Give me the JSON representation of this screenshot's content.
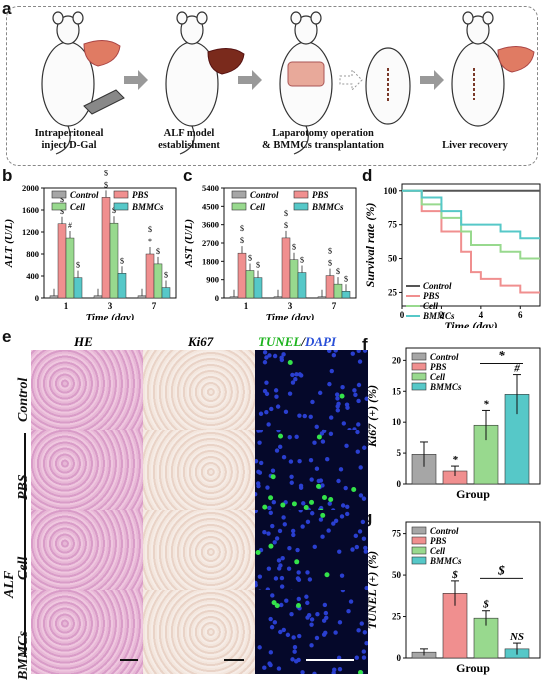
{
  "panel_a": {
    "label": "a",
    "steps": [
      {
        "caption": "Intraperitoneal\ninject D-Gal"
      },
      {
        "caption": "ALF model\nestablishment"
      },
      {
        "caption": "Laparotomy operation\n& BMMCs transplantation"
      },
      {
        "caption": "Liver recovery"
      }
    ]
  },
  "legend": [
    "Control",
    "PBS",
    "Cell",
    "BMMCs"
  ],
  "colors": {
    "Control": "#a6a6a6",
    "PBS": "#f08f8f",
    "Cell": "#98d98e",
    "BMMCs": "#56c8c8"
  },
  "chart_data": [
    {
      "panel": "b",
      "type": "bar",
      "ylabel": "ALT (U/L)",
      "xlabel": "Time (day)",
      "categories": [
        "1",
        "3",
        "7"
      ],
      "yticks": [
        "0",
        "400",
        "800",
        "1200",
        "1600",
        "2000"
      ],
      "ylim": [
        0,
        2000
      ],
      "series": [
        {
          "name": "Control",
          "values": [
            40,
            40,
            40
          ]
        },
        {
          "name": "PBS",
          "values": [
            1350,
            1830,
            800
          ]
        },
        {
          "name": "Cell",
          "values": [
            1090,
            1360,
            620
          ]
        },
        {
          "name": "BMMCs",
          "values": [
            370,
            450,
            190
          ]
        }
      ],
      "sig_marks": [
        "$",
        "#",
        "$",
        "$",
        "$",
        "$",
        "$",
        "$",
        "*",
        "$",
        "$",
        "$"
      ]
    },
    {
      "panel": "c",
      "type": "bar",
      "ylabel": "AST (U/L)",
      "xlabel": "Time (day)",
      "categories": [
        "1",
        "3",
        "7"
      ],
      "yticks": [
        "0",
        "900",
        "1800",
        "2700",
        "3600",
        "4500",
        "5400"
      ],
      "ylim": [
        0,
        5400
      ],
      "series": [
        {
          "name": "Control",
          "values": [
            60,
            60,
            60
          ]
        },
        {
          "name": "PBS",
          "values": [
            2200,
            2950,
            1100
          ]
        },
        {
          "name": "Cell",
          "values": [
            1350,
            1880,
            680
          ]
        },
        {
          "name": "BMMCs",
          "values": [
            1000,
            1250,
            330
          ]
        }
      ],
      "sig_marks": [
        "$",
        "$",
        "$",
        "$",
        "$",
        "$",
        "$",
        "$",
        "$",
        "$",
        "$",
        "$"
      ]
    },
    {
      "panel": "d",
      "type": "line",
      "ylabel": "Survival rate (%)",
      "xlabel": "Time (day)",
      "xticks": [
        "0",
        "2",
        "4",
        "6"
      ],
      "yticks": [
        "25",
        "50",
        "75",
        "100"
      ],
      "xlim": [
        0,
        7
      ],
      "ylim": [
        15,
        105
      ],
      "series": [
        {
          "name": "Control",
          "points": [
            [
              0,
              100
            ],
            [
              7,
              100
            ]
          ]
        },
        {
          "name": "PBS",
          "points": [
            [
              0,
              100
            ],
            [
              1,
              100
            ],
            [
              1,
              85
            ],
            [
              2,
              85
            ],
            [
              2,
              70
            ],
            [
              3,
              70
            ],
            [
              3,
              55
            ],
            [
              3.5,
              55
            ],
            [
              3.5,
              40
            ],
            [
              4,
              40
            ],
            [
              4,
              35
            ],
            [
              5,
              35
            ],
            [
              5,
              30
            ],
            [
              6,
              30
            ],
            [
              6,
              25
            ],
            [
              7,
              25
            ]
          ]
        },
        {
          "name": "Cell",
          "points": [
            [
              0,
              100
            ],
            [
              1,
              100
            ],
            [
              1,
              90
            ],
            [
              2,
              90
            ],
            [
              2,
              80
            ],
            [
              3,
              80
            ],
            [
              3,
              70
            ],
            [
              3.5,
              70
            ],
            [
              3.5,
              60
            ],
            [
              5,
              60
            ],
            [
              5,
              55
            ],
            [
              6,
              55
            ],
            [
              6,
              50
            ],
            [
              7,
              50
            ]
          ]
        },
        {
          "name": "BMMCs",
          "points": [
            [
              0,
              100
            ],
            [
              1,
              100
            ],
            [
              1,
              95
            ],
            [
              2,
              95
            ],
            [
              2,
              85
            ],
            [
              3,
              85
            ],
            [
              3,
              75
            ],
            [
              5,
              75
            ],
            [
              5,
              70
            ],
            [
              6,
              70
            ],
            [
              6,
              65
            ],
            [
              7,
              65
            ]
          ]
        }
      ]
    },
    {
      "panel": "f",
      "type": "bar",
      "ylabel": "Ki67 (+) (%)",
      "xlabel": "Group",
      "categories": [
        "Control",
        "PBS",
        "Cell",
        "BMMCs"
      ],
      "yticks": [
        "0",
        "5",
        "10",
        "15",
        "20"
      ],
      "ylim": [
        0,
        22
      ],
      "values": [
        4.8,
        2.1,
        9.5,
        14.5
      ],
      "errors": [
        2.0,
        0.8,
        2.4,
        3.2
      ],
      "marks": [
        "",
        "*",
        "*",
        "#"
      ],
      "bracket_mark": "*"
    },
    {
      "panel": "g",
      "type": "bar",
      "ylabel": "TUNEL (+) (%)",
      "xlabel": "Group",
      "categories": [
        "Control",
        "PBS",
        "Cell",
        "BMMCs"
      ],
      "yticks": [
        "0",
        "25",
        "50",
        "75"
      ],
      "ylim": [
        0,
        82
      ],
      "values": [
        3.5,
        39,
        24,
        5.5
      ],
      "errors": [
        2.0,
        7.5,
        4.5,
        3.5
      ],
      "marks": [
        "",
        "$",
        "$",
        "NS"
      ],
      "bracket_mark": "$"
    }
  ],
  "panel_e": {
    "label": "e",
    "columns": [
      "HE",
      "Ki67",
      "TUNEL",
      "DAPI"
    ],
    "rows": [
      "Control",
      "PBS",
      "Cell",
      "BMMCs"
    ],
    "group_label": "ALF"
  },
  "panel_labels": {
    "b": "b",
    "c": "c",
    "d": "d",
    "f": "f",
    "g": "g"
  }
}
